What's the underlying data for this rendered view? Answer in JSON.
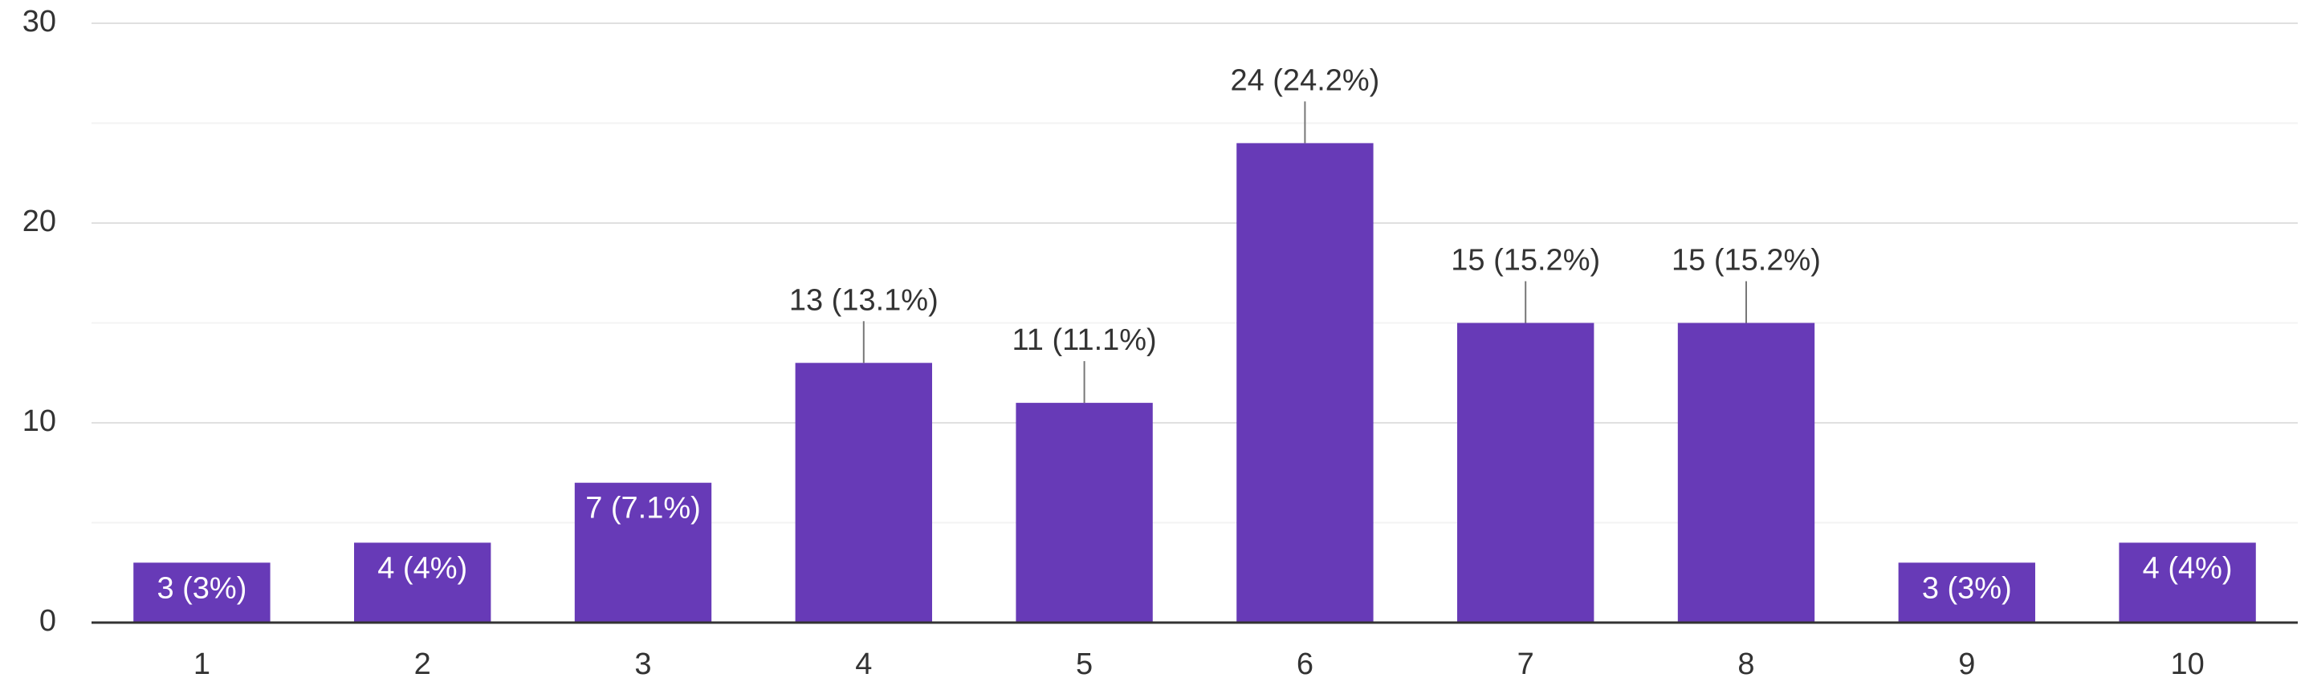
{
  "chart_data": {
    "type": "bar",
    "categories": [
      "1",
      "2",
      "3",
      "4",
      "5",
      "6",
      "7",
      "8",
      "9",
      "10"
    ],
    "values": [
      3,
      4,
      7,
      13,
      11,
      24,
      15,
      15,
      3,
      4
    ],
    "value_labels": [
      "3 (3%)",
      "4 (4%)",
      "7 (7.1%)",
      "13 (13.1%)",
      "11 (11.1%)",
      "24 (24.2%)",
      "15 (15.2%)",
      "15 (15.2%)",
      "3 (3%)",
      "4 (4%)"
    ],
    "color": "#673ab7",
    "ylim": [
      0,
      30
    ],
    "yticks": [
      0,
      10,
      20,
      30
    ],
    "minor_gridlines": [
      5,
      15,
      25
    ],
    "grid": true
  }
}
